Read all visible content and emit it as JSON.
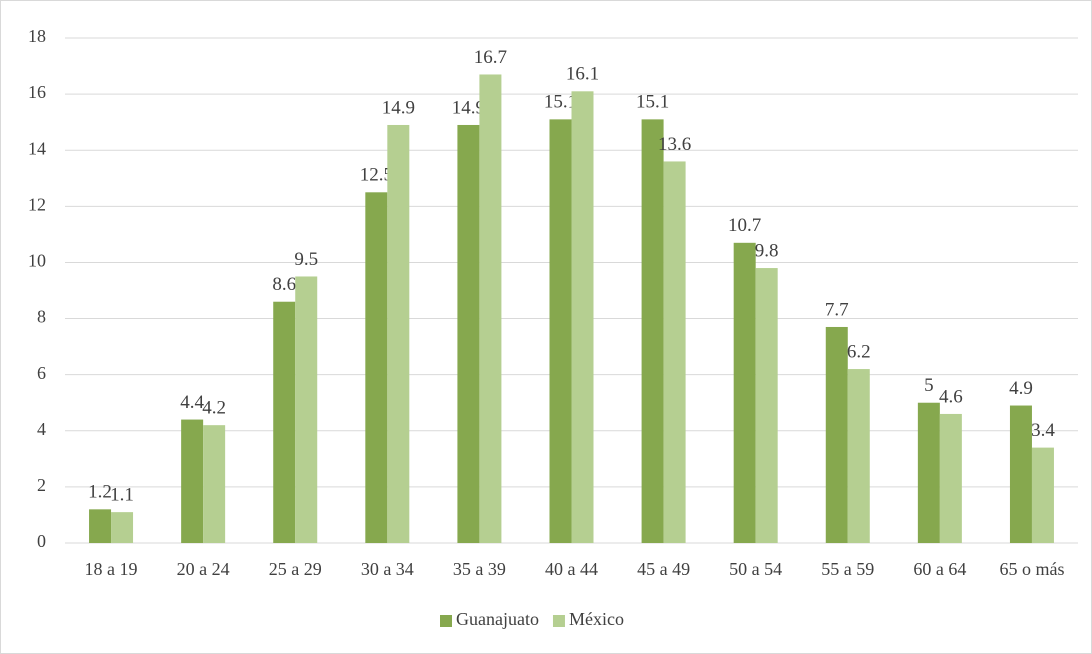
{
  "chart_data": {
    "type": "bar",
    "categories": [
      "18 a 19",
      "20 a 24",
      "25 a 29",
      "30 a 34",
      "35 a 39",
      "40 a 44",
      "45 a 49",
      "50 a 54",
      "55 a 59",
      "60 a 64",
      "65 o más"
    ],
    "series": [
      {
        "name": "Guanajuato",
        "color": "#86a84e",
        "values": [
          1.2,
          4.4,
          8.6,
          12.5,
          14.9,
          15.1,
          15.1,
          10.7,
          7.7,
          5,
          4.9
        ]
      },
      {
        "name": "México",
        "color": "#b5cf91",
        "values": [
          1.1,
          4.2,
          9.5,
          14.9,
          16.7,
          16.1,
          13.6,
          9.8,
          6.2,
          4.6,
          3.4
        ]
      }
    ],
    "ylim": [
      0,
      18
    ],
    "yticks": [
      0,
      2,
      4,
      6,
      8,
      10,
      12,
      14,
      16,
      18
    ],
    "grid": true,
    "legend": "bottom"
  }
}
